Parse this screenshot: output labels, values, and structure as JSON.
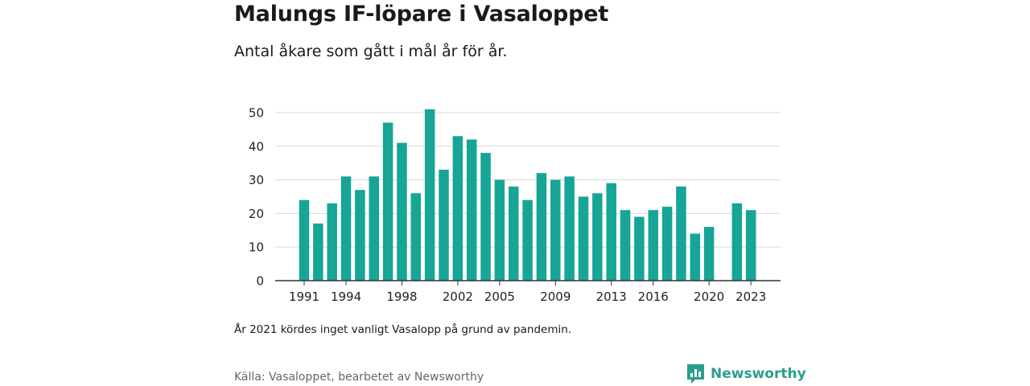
{
  "header": {
    "title": "Malungs IF-löpare i Vasaloppet",
    "subtitle": "Antal åkare som gått i mål år för år."
  },
  "footer": {
    "note": "År 2021 kördes inget vanligt Vasalopp på grund av pandemin.",
    "source": "Källa: Vasaloppet, bearbetet av Newsworthy",
    "brand": "Newsworthy",
    "brand_icon": "newsworthy-logo-icon"
  },
  "colors": {
    "bar": "#16a596",
    "grid": "#d9d9d9",
    "axis": "#333333",
    "brand": "#2a9d8f"
  },
  "chart_data": {
    "type": "bar",
    "title": "Malungs IF-löpare i Vasaloppet",
    "subtitle": "Antal åkare som gått i mål år för år.",
    "xlabel": "",
    "ylabel": "",
    "ylim": [
      0,
      50
    ],
    "yticks": [
      0,
      10,
      20,
      30,
      40,
      50
    ],
    "xtick_labels": [
      "1991",
      "1994",
      "1998",
      "2002",
      "2005",
      "2009",
      "2013",
      "2016",
      "2020",
      "2023"
    ],
    "grid": true,
    "legend": "none",
    "categories": [
      "1991",
      "1992",
      "1993",
      "1994",
      "1995",
      "1996",
      "1997",
      "1998",
      "1999",
      "2000",
      "2001",
      "2002",
      "2003",
      "2004",
      "2005",
      "2006",
      "2007",
      "2008",
      "2009",
      "2010",
      "2011",
      "2012",
      "2013",
      "2014",
      "2015",
      "2016",
      "2017",
      "2018",
      "2019",
      "2020",
      "2021",
      "2022",
      "2023"
    ],
    "values": [
      24,
      17,
      23,
      31,
      27,
      31,
      47,
      41,
      26,
      51,
      33,
      43,
      42,
      38,
      30,
      28,
      24,
      32,
      30,
      31,
      25,
      26,
      29,
      21,
      19,
      21,
      22,
      28,
      14,
      16,
      null,
      23,
      21
    ]
  }
}
